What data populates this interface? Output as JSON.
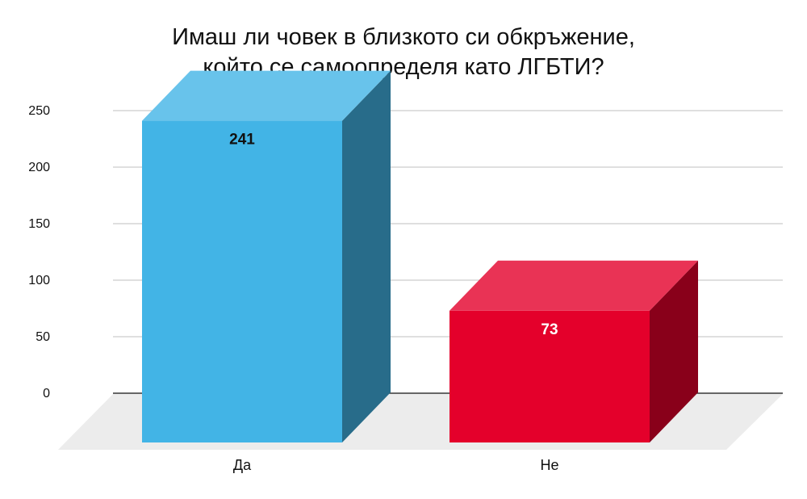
{
  "chart_data": {
    "type": "bar",
    "title_lines": [
      "Имаш ли човек в близкото си обкръжение,",
      "който се самоопределя като ЛГБТИ?"
    ],
    "categories": [
      "Да",
      "Не"
    ],
    "values": [
      241,
      73
    ],
    "data_labels": [
      "241",
      "73"
    ],
    "y_ticks": [
      "0",
      "50",
      "100",
      "150",
      "200",
      "250"
    ],
    "ylim": [
      0,
      250
    ],
    "grid": true,
    "legend": "none",
    "style": "3d",
    "colors": {
      "bars": [
        "#42b4e6",
        "#e4002b"
      ],
      "label_colors": [
        "#111111",
        "#ffffff"
      ],
      "gridline": "#cccccc",
      "floor": "#ececec"
    }
  }
}
